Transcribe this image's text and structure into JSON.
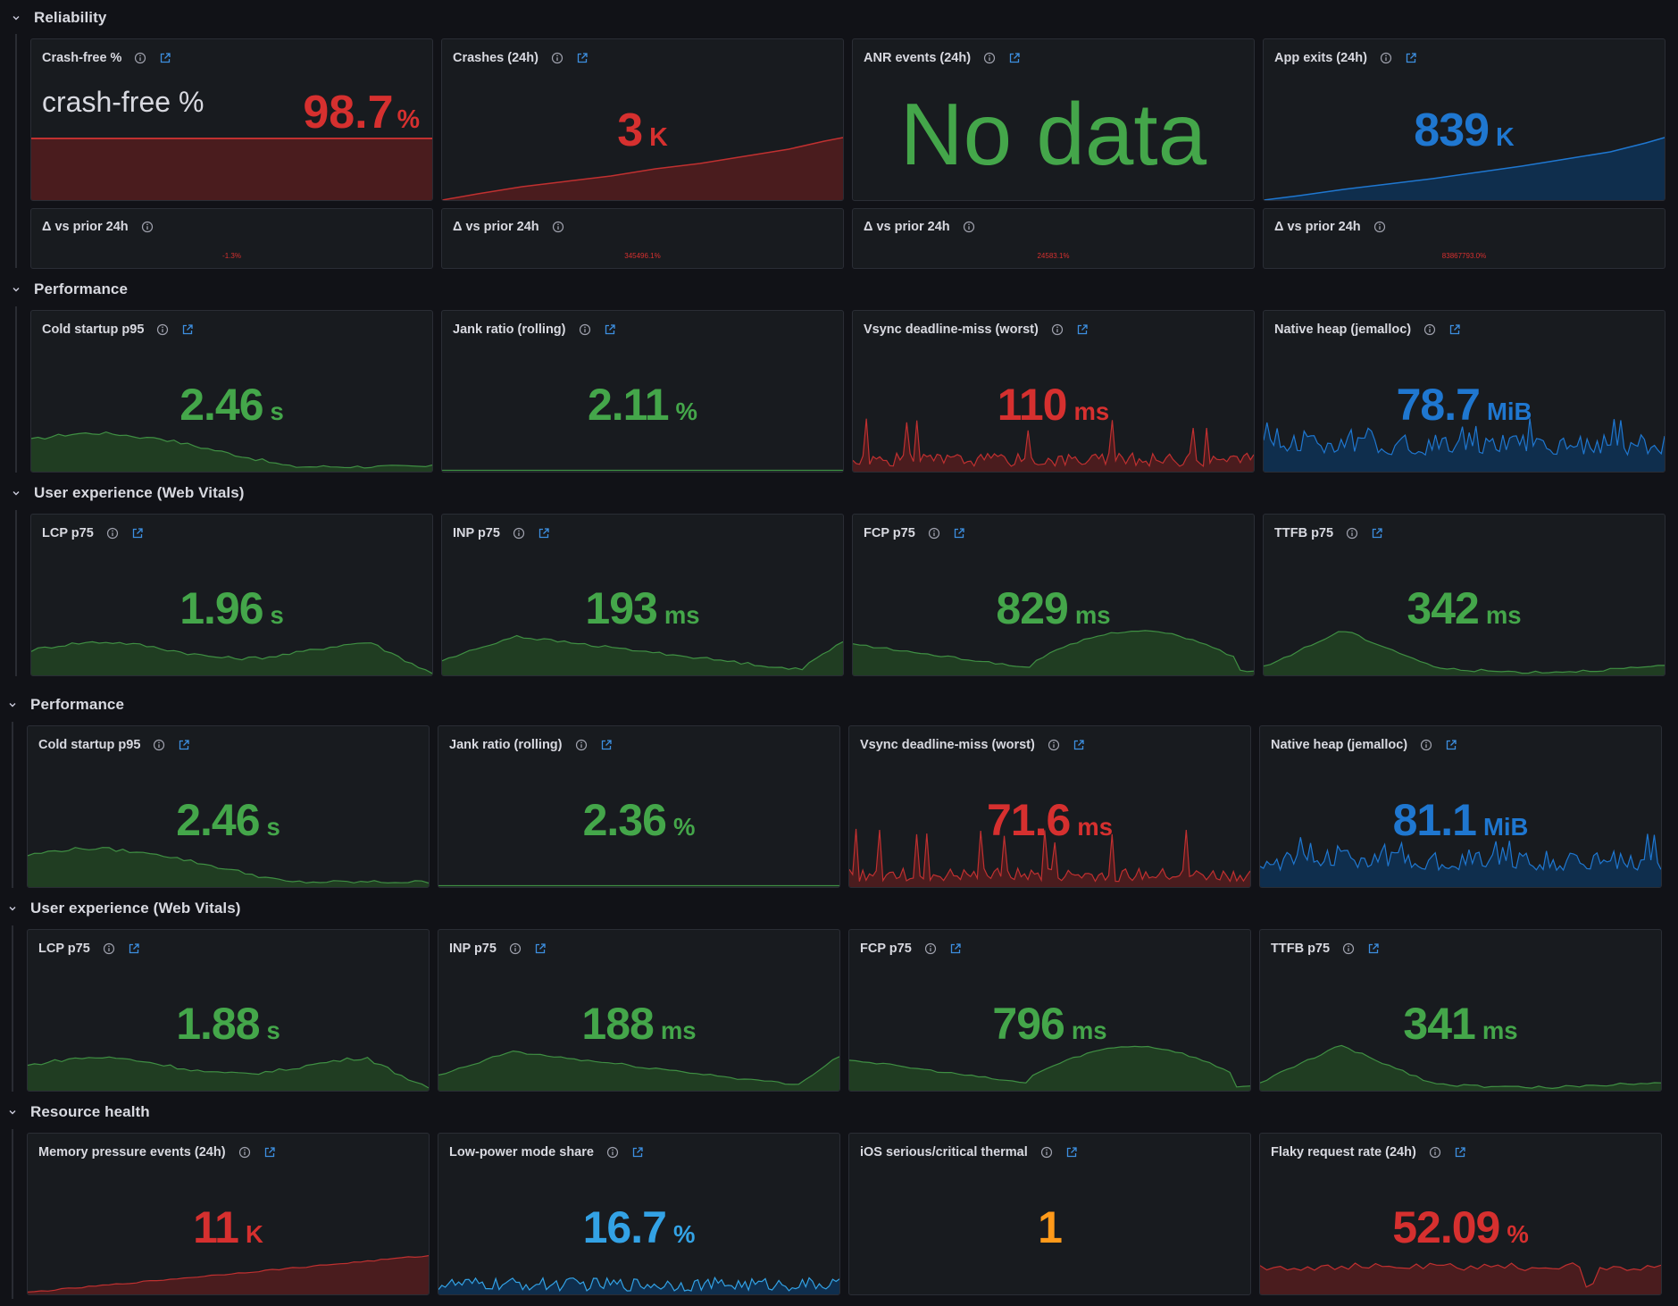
{
  "sections": [
    {
      "title": "Reliability"
    },
    {
      "title": "Performance"
    },
    {
      "title": "User experience (Web Vitals)"
    },
    {
      "title": "Performance"
    },
    {
      "title": "User experience (Web Vitals)"
    },
    {
      "title": "Resource health"
    }
  ],
  "reliability": {
    "crash_free": {
      "title": "Crash-free %",
      "label": "crash-free %",
      "value": "98.7",
      "unit": "%"
    },
    "crashes": {
      "title": "Crashes (24h)",
      "value": "3",
      "unit": "K"
    },
    "anr": {
      "title": "ANR events (24h)",
      "value": "No data"
    },
    "app_exits": {
      "title": "App exits (24h)",
      "value": "839",
      "unit": "K"
    },
    "deltas": [
      {
        "title": "Δ vs prior 24h",
        "value": "-1.3%"
      },
      {
        "title": "Δ vs prior 24h",
        "value": "345496.1%"
      },
      {
        "title": "Δ vs prior 24h",
        "value": "24583.1%"
      },
      {
        "title": "Δ vs prior 24h",
        "value": "83867793.0%"
      }
    ]
  },
  "performance1": [
    {
      "title": "Cold startup p95",
      "value": "2.46",
      "unit": "s"
    },
    {
      "title": "Jank ratio (rolling)",
      "value": "2.11",
      "unit": "%"
    },
    {
      "title": "Vsync deadline-miss (worst)",
      "value": "110",
      "unit": "ms"
    },
    {
      "title": "Native heap (jemalloc)",
      "value": "78.7",
      "unit": "MiB"
    }
  ],
  "webvitals1": [
    {
      "title": "LCP p75",
      "value": "1.96",
      "unit": "s"
    },
    {
      "title": "INP p75",
      "value": "193",
      "unit": "ms"
    },
    {
      "title": "FCP p75",
      "value": "829",
      "unit": "ms"
    },
    {
      "title": "TTFB p75",
      "value": "342",
      "unit": "ms"
    }
  ],
  "performance2": [
    {
      "title": "Cold startup p95",
      "value": "2.46",
      "unit": "s"
    },
    {
      "title": "Jank ratio (rolling)",
      "value": "2.36",
      "unit": "%"
    },
    {
      "title": "Vsync deadline-miss (worst)",
      "value": "71.6",
      "unit": "ms"
    },
    {
      "title": "Native heap (jemalloc)",
      "value": "81.1",
      "unit": "MiB"
    }
  ],
  "webvitals2": [
    {
      "title": "LCP p75",
      "value": "1.88",
      "unit": "s"
    },
    {
      "title": "INP p75",
      "value": "188",
      "unit": "ms"
    },
    {
      "title": "FCP p75",
      "value": "796",
      "unit": "ms"
    },
    {
      "title": "TTFB p75",
      "value": "341",
      "unit": "ms"
    }
  ],
  "resource": [
    {
      "title": "Memory pressure events (24h)",
      "value": "11",
      "unit": "K"
    },
    {
      "title": "Low-power mode share",
      "value": "16.7",
      "unit": "%"
    },
    {
      "title": "iOS serious/critical thermal",
      "value": "1"
    },
    {
      "title": "Flaky request rate (24h)",
      "value": "52.09",
      "unit": "%"
    }
  ],
  "colors": {
    "green": "#44a64a",
    "red": "#d6302f",
    "blue": "#1f77d0",
    "sky": "#33a2e5",
    "orange": "#ff9a1a",
    "panel_bg": "#181b1f",
    "page_bg": "#111217"
  },
  "icons": [
    "chevron-down-icon",
    "info-icon",
    "external-link-icon"
  ]
}
